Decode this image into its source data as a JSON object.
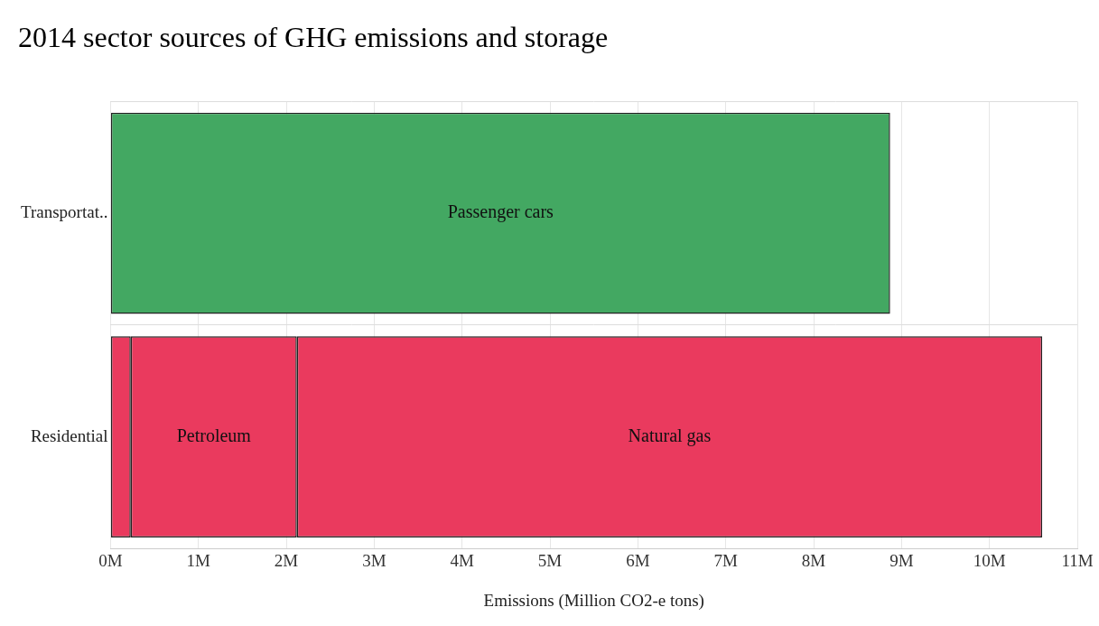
{
  "chart_data": {
    "type": "bar",
    "title": "2014 sector sources of GHG emissions and storage",
    "x_label": "Emissions (Million CO2-e tons)",
    "categories": [
      "Transportat..",
      "Residential"
    ],
    "series": [
      {
        "name": "Passenger cars",
        "color": "#43a862",
        "values": [
          8.87,
          null
        ]
      },
      {
        "color": "#ea3a5e",
        "values": [
          null,
          0.23
        ]
      },
      {
        "name": "Petroleum",
        "color": "#ea3a5e",
        "values": [
          null,
          1.89
        ]
      },
      {
        "name": "Natural gas",
        "color": "#ea3a5e",
        "values": [
          null,
          8.48
        ]
      }
    ],
    "xlim": [
      0,
      11
    ],
    "xticks": [
      {
        "value": 0,
        "label": "0M"
      },
      {
        "value": 1,
        "label": "1M"
      },
      {
        "value": 2,
        "label": "2M"
      },
      {
        "value": 3,
        "label": "3M"
      },
      {
        "value": 4,
        "label": "4M"
      },
      {
        "value": 5,
        "label": "5M"
      },
      {
        "value": 6,
        "label": "6M"
      },
      {
        "value": 7,
        "label": "7M"
      },
      {
        "value": 8,
        "label": "8M"
      },
      {
        "value": 9,
        "label": "9M"
      },
      {
        "value": 10,
        "label": "10M"
      },
      {
        "value": 11,
        "label": "11M"
      }
    ],
    "orientation": "horizontal",
    "stacked": true,
    "grid": true
  }
}
